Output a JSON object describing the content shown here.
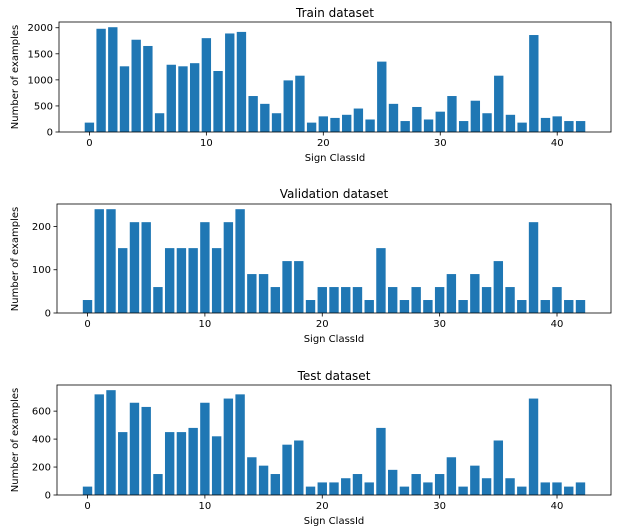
{
  "chart_data": [
    {
      "type": "bar",
      "title": "Train dataset",
      "xlabel": "Sign ClassId",
      "ylabel": "Number of examples",
      "x": [
        0,
        1,
        2,
        3,
        4,
        5,
        6,
        7,
        8,
        9,
        10,
        11,
        12,
        13,
        14,
        15,
        16,
        17,
        18,
        19,
        20,
        21,
        22,
        23,
        24,
        25,
        26,
        27,
        28,
        29,
        30,
        31,
        32,
        33,
        34,
        35,
        36,
        37,
        38,
        39,
        40,
        41,
        42
      ],
      "values": [
        180,
        1980,
        2010,
        1260,
        1770,
        1650,
        360,
        1290,
        1260,
        1320,
        1800,
        1170,
        1890,
        1920,
        690,
        540,
        360,
        990,
        1080,
        180,
        300,
        270,
        330,
        450,
        240,
        1350,
        540,
        210,
        480,
        240,
        390,
        690,
        210,
        600,
        360,
        1080,
        330,
        180,
        1860,
        270,
        300,
        210,
        210
      ],
      "xticks": [
        0,
        10,
        20,
        30,
        40
      ],
      "yticks": [
        0,
        500,
        1000,
        1500,
        2000
      ],
      "xlim": [
        -2.6,
        44.6
      ],
      "ylim": [
        0,
        2110
      ]
    },
    {
      "type": "bar",
      "title": "Validation dataset",
      "xlabel": "Sign ClassId",
      "ylabel": "Number of examples",
      "x": [
        0,
        1,
        2,
        3,
        4,
        5,
        6,
        7,
        8,
        9,
        10,
        11,
        12,
        13,
        14,
        15,
        16,
        17,
        18,
        19,
        20,
        21,
        22,
        23,
        24,
        25,
        26,
        27,
        28,
        29,
        30,
        31,
        32,
        33,
        34,
        35,
        36,
        37,
        38,
        39,
        40,
        41,
        42
      ],
      "values": [
        30,
        240,
        240,
        150,
        210,
        210,
        60,
        150,
        150,
        150,
        210,
        150,
        210,
        240,
        90,
        90,
        60,
        120,
        120,
        30,
        60,
        60,
        60,
        60,
        30,
        150,
        60,
        30,
        60,
        30,
        60,
        90,
        30,
        90,
        60,
        120,
        60,
        30,
        210,
        30,
        60,
        30,
        30
      ],
      "xticks": [
        0,
        10,
        20,
        30,
        40
      ],
      "yticks": [
        0,
        100,
        200
      ],
      "xlim": [
        -2.6,
        44.6
      ],
      "ylim": [
        0,
        252
      ]
    },
    {
      "type": "bar",
      "title": "Test dataset",
      "xlabel": "Sign ClassId",
      "ylabel": "Number of examples",
      "x": [
        0,
        1,
        2,
        3,
        4,
        5,
        6,
        7,
        8,
        9,
        10,
        11,
        12,
        13,
        14,
        15,
        16,
        17,
        18,
        19,
        20,
        21,
        22,
        23,
        24,
        25,
        26,
        27,
        28,
        29,
        30,
        31,
        32,
        33,
        34,
        35,
        36,
        37,
        38,
        39,
        40,
        41,
        42
      ],
      "values": [
        60,
        720,
        750,
        450,
        660,
        630,
        150,
        450,
        450,
        480,
        660,
        420,
        690,
        720,
        270,
        210,
        150,
        360,
        390,
        60,
        90,
        90,
        120,
        150,
        90,
        480,
        180,
        60,
        150,
        90,
        150,
        270,
        60,
        210,
        120,
        390,
        120,
        60,
        690,
        90,
        90,
        60,
        90
      ],
      "xticks": [
        0,
        10,
        20,
        30,
        40
      ],
      "yticks": [
        0,
        200,
        400,
        600
      ],
      "xlim": [
        -2.6,
        44.6
      ],
      "ylim": [
        0,
        787
      ]
    }
  ],
  "colors": {
    "bar": "#1f77b4",
    "axes": "#000000",
    "background": "#ffffff"
  }
}
